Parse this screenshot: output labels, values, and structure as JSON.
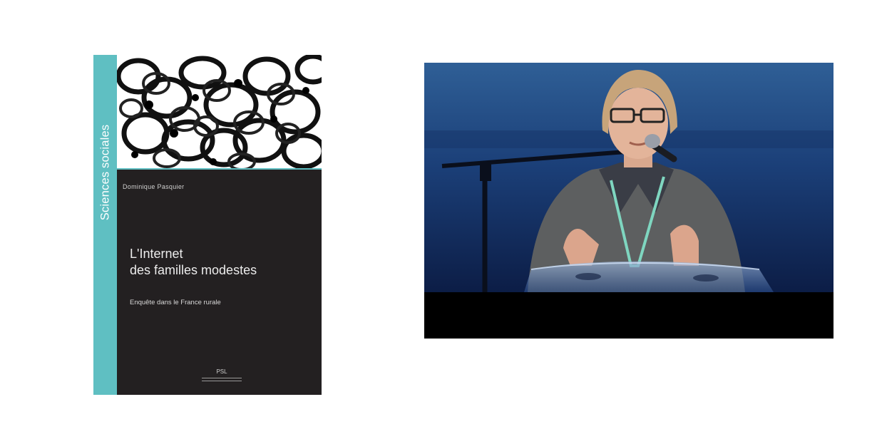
{
  "book": {
    "series": "Sciences sociales",
    "author": "Dominique Pasquier",
    "title_line1": "L'Internet",
    "title_line2": "des familles modestes",
    "subtitle": "Enquête dans le France rurale",
    "publisher_mark": "PSL",
    "colors": {
      "spine": "#5fbfc2",
      "cover": "#232021"
    }
  },
  "video": {
    "description_icon": "speaker-at-podium"
  }
}
